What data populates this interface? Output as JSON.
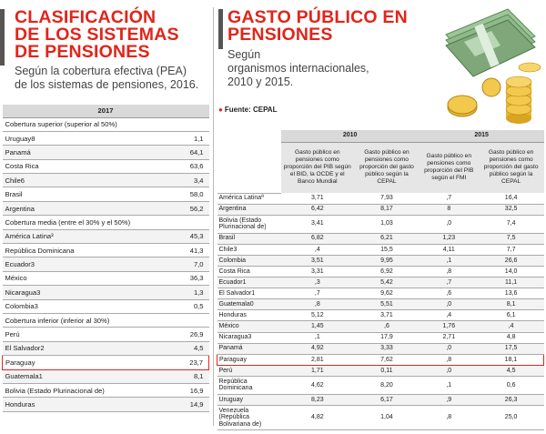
{
  "left": {
    "title_lines": [
      "CLASIFICACIÓN",
      "DE LOS SISTEMAS",
      "DE PENSIONES"
    ],
    "subtitle_lines": [
      "Según la cobertura efectiva (PEA)",
      "de los sistemas de pensiones, 2016."
    ],
    "year": "2017",
    "rows": [
      {
        "label": "Cobertura superior (superior al 50%)",
        "value": "",
        "section": true
      },
      {
        "label": "Uruguay8",
        "value": "1,1"
      },
      {
        "label": "Panamá",
        "value": "64,1"
      },
      {
        "label": "Costa Rica",
        "value": "63,6"
      },
      {
        "label": "Chile6",
        "value": "3,4"
      },
      {
        "label": "Brasil",
        "value": "58,0"
      },
      {
        "label": "Argentina",
        "value": "56,2"
      },
      {
        "label": "Cobertura media (entre el 30% y el 50%)",
        "value": "",
        "section": true
      },
      {
        "label": "América Latina³",
        "value": "45,3"
      },
      {
        "label": "República Dominicana",
        "value": "41,3"
      },
      {
        "label": "Ecuador3",
        "value": "7,0"
      },
      {
        "label": "México",
        "value": "36,3"
      },
      {
        "label": "Nicaragua3",
        "value": "1,3"
      },
      {
        "label": "Colombia3",
        "value": "0,5"
      },
      {
        "label": "Cobertura inferior (inferior al 30%)",
        "value": "",
        "section": true
      },
      {
        "label": "Perú",
        "value": "26,9"
      },
      {
        "label": "El Salvador2",
        "value": "4,5"
      },
      {
        "label": "Paraguay",
        "value": "23,7",
        "highlight": true
      },
      {
        "label": "Guatemala1",
        "value": "8,1"
      },
      {
        "label": "Bolivia (Estado Plurinacional de)",
        "value": "16,9"
      },
      {
        "label": "Honduras",
        "value": "14,9"
      }
    ]
  },
  "right": {
    "title_lines": [
      "GASTO PÚBLICO EN",
      "PENSIONES"
    ],
    "subtitle_lines": [
      "Según",
      "organismos internacionales,",
      "2010 y 2015."
    ],
    "source": "Fuente: CEPAL",
    "year_2010": "2010",
    "year_2015": "2015",
    "col_headers": [
      "Gasto público en pensiones como proporción del PIB según el BID, la OCDE y el Banco Mundial",
      "Gasto público en pensiones como proporción del gasto público según la CEPAL",
      "Gasto público en pensiones como proporción del PIB según el FMI",
      "Gasto público en pensiones como proporción del gasto público según la CEPAL"
    ],
    "rows": [
      {
        "name": "América Latinaª",
        "v": [
          "3,71",
          "7,93",
          ",7",
          "16,4"
        ]
      },
      {
        "name": "Argentina",
        "v": [
          "6,42",
          "8,17",
          "8",
          "32,5"
        ]
      },
      {
        "name": "Bolivia (Estado Plurinacional de)",
        "v": [
          "3,41",
          "1,03",
          ",0",
          "7,4"
        ],
        "tall": 1
      },
      {
        "name": "Brasil",
        "v": [
          "6,82",
          "6,21",
          "1,23",
          "7,5"
        ]
      },
      {
        "name": "Chile3",
        "v": [
          ",4",
          "15,5",
          "4,11",
          "7,7"
        ]
      },
      {
        "name": "Colombia",
        "v": [
          "3,51",
          "9,95",
          ",1",
          "26,6"
        ]
      },
      {
        "name": "Costa Rica",
        "v": [
          "3,31",
          "6,92",
          ",8",
          "14,0"
        ]
      },
      {
        "name": "Ecuador1",
        "v": [
          ",3",
          "5,42",
          ",7",
          "11,1"
        ]
      },
      {
        "name": "El Salvador1",
        "v": [
          ",7",
          "9,62",
          ",6",
          "13,6"
        ]
      },
      {
        "name": "Guatemala0",
        "v": [
          ",8",
          "5,51",
          ",0",
          "8,1"
        ]
      },
      {
        "name": "Honduras",
        "v": [
          "5,12",
          "3,71",
          ",4",
          "6,1"
        ]
      },
      {
        "name": "México",
        "v": [
          "1,45",
          ",6",
          "1,76",
          ",4"
        ]
      },
      {
        "name": "Nicaragua3",
        "v": [
          ",1",
          "17,9",
          "2,71",
          "4,8"
        ]
      },
      {
        "name": "Panamá",
        "v": [
          "4,92",
          "3,33",
          ",0",
          "17,5"
        ]
      },
      {
        "name": "Paraguay",
        "v": [
          "2,81",
          "7,62",
          ",8",
          "18,1"
        ],
        "highlight": true
      },
      {
        "name": "Perú",
        "v": [
          "1,71",
          "0,11",
          ",0",
          "4,5"
        ]
      },
      {
        "name": "República Dominicana",
        "v": [
          "4,62",
          "8,20",
          ",1",
          "0,6"
        ],
        "tall": 1
      },
      {
        "name": "Uruguay",
        "v": [
          "8,23",
          "6,17",
          ",9",
          "26,3"
        ]
      },
      {
        "name": "Venezuela (República Bolivariana de)",
        "v": [
          "4,82",
          "1,04",
          ",8",
          "25,0"
        ],
        "tall": 2
      }
    ]
  },
  "colors": {
    "accent_red": "#e1251b",
    "header_gray": "#d9d9d9",
    "gold": "#e8b830",
    "money_green": "#7fa77a"
  }
}
